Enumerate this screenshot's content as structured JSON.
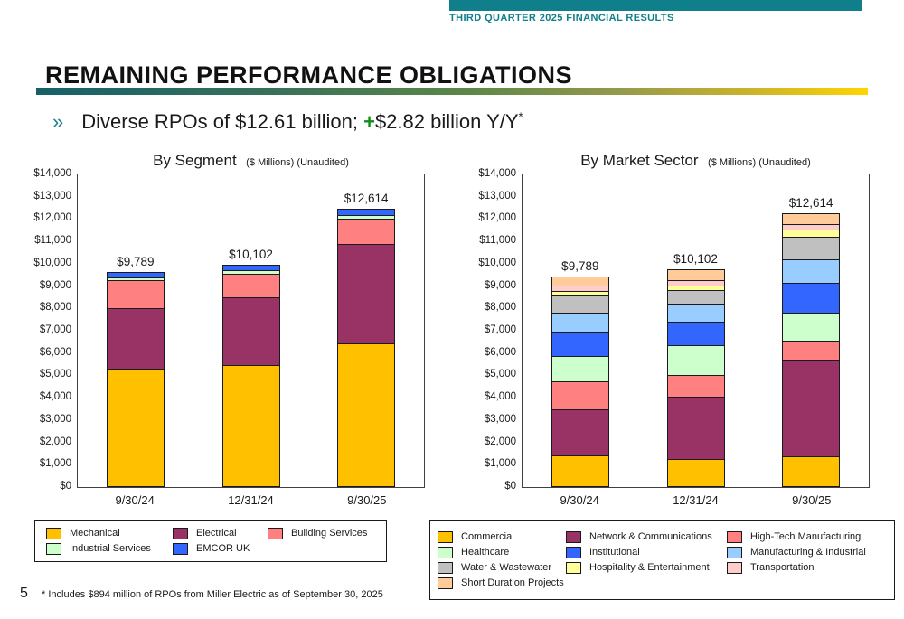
{
  "header": {
    "eyebrow": "THIRD QUARTER 2025 FINANCIAL RESULTS"
  },
  "title": "REMAINING PERFORMANCE OBLIGATIONS",
  "subtitle": {
    "bullet": "»",
    "text_before_plus": "Diverse RPOs of $12.61 billion; ",
    "plus": "+",
    "text_after_plus": "$2.82 billion Y/Y",
    "asterisk": "*"
  },
  "colors": {
    "accent_teal": "#0E7F8B",
    "plus_green": "#0F9015",
    "rule_gradient_start": "#156069",
    "rule_gradient_end": "#FFD400"
  },
  "chart_data": [
    {
      "type": "bar",
      "stacked": true,
      "title": "By Segment",
      "units_note": "($ Millions) (Unaudited)",
      "categories": [
        "9/30/24",
        "12/31/24",
        "9/30/25"
      ],
      "totals": [
        9789,
        10102,
        12614
      ],
      "totals_labels": [
        "$9,789",
        "$10,102",
        "$12,614"
      ],
      "ylim": [
        0,
        14000
      ],
      "y_tick_step": 1000,
      "y_tick_labels": [
        "$14,000",
        "$13,000",
        "$12,000",
        "$11,000",
        "$10,000",
        "$9,000",
        "$8,000",
        "$7,000",
        "$6,000",
        "$5,000",
        "$4,000",
        "$3,000",
        "$2,000",
        "$1,000",
        "$0"
      ],
      "grid": false,
      "legend_position": "bottom",
      "series": [
        {
          "name": "Mechanical",
          "color": "#FFC000",
          "values": [
            5320,
            5470,
            6420
          ]
        },
        {
          "name": "Electrical",
          "color": "#993366",
          "values": [
            2745,
            3080,
            4520
          ]
        },
        {
          "name": "Building Services",
          "color": "#FF8080",
          "values": [
            1275,
            1090,
            1175
          ]
        },
        {
          "name": "Industrial Services",
          "color": "#CCFFCC",
          "values": [
            175,
            190,
            200
          ]
        },
        {
          "name": "EMCOR UK",
          "color": "#3366FF",
          "values": [
            274,
            272,
            299
          ]
        }
      ]
    },
    {
      "type": "bar",
      "stacked": true,
      "title": "By Market Sector",
      "units_note": "($ Millions) (Unaudited)",
      "categories": [
        "9/30/24",
        "12/31/24",
        "9/30/25"
      ],
      "totals": [
        9789,
        10102,
        12614
      ],
      "totals_labels": [
        "$9,789",
        "$10,102",
        "$12,614"
      ],
      "ylim": [
        0,
        14000
      ],
      "y_tick_step": 1000,
      "y_tick_labels": [
        "$14,000",
        "$13,000",
        "$12,000",
        "$11,000",
        "$10,000",
        "$9,000",
        "$8,000",
        "$7,000",
        "$6,000",
        "$5,000",
        "$4,000",
        "$3,000",
        "$2,000",
        "$1,000",
        "$0"
      ],
      "grid": false,
      "legend_position": "bottom",
      "series": [
        {
          "name": "Commercial",
          "color": "#FFC000",
          "values": [
            1415,
            1242,
            1384
          ]
        },
        {
          "name": "Network & Communications",
          "color": "#993366",
          "values": [
            2115,
            2840,
            4360
          ]
        },
        {
          "name": "High-Tech Manufacturing",
          "color": "#FF8080",
          "values": [
            1290,
            1010,
            880
          ]
        },
        {
          "name": "Healthcare",
          "color": "#CCFFCC",
          "values": [
            1170,
            1370,
            1320
          ]
        },
        {
          "name": "Institutional",
          "color": "#3366FF",
          "values": [
            1120,
            1120,
            1370
          ]
        },
        {
          "name": "Manufacturing & Industrial",
          "color": "#99CCFF",
          "values": [
            900,
            850,
            1080
          ]
        },
        {
          "name": "Water & Wastewater",
          "color": "#C0C0C0",
          "values": [
            810,
            640,
            1050
          ]
        },
        {
          "name": "Hospitality & Entertainment",
          "color": "#FFFF99",
          "values": [
            230,
            230,
            360
          ]
        },
        {
          "name": "Transportation",
          "color": "#FFCCCC",
          "values": [
            285,
            300,
            300
          ]
        },
        {
          "name": "Short Duration Projects",
          "color": "#FFCC99",
          "values": [
            454,
            500,
            510
          ]
        }
      ]
    }
  ],
  "footer": {
    "page_number": "5",
    "footnote": "* Includes $894 million of RPOs from Miller Electric as of September 30, 2025"
  }
}
